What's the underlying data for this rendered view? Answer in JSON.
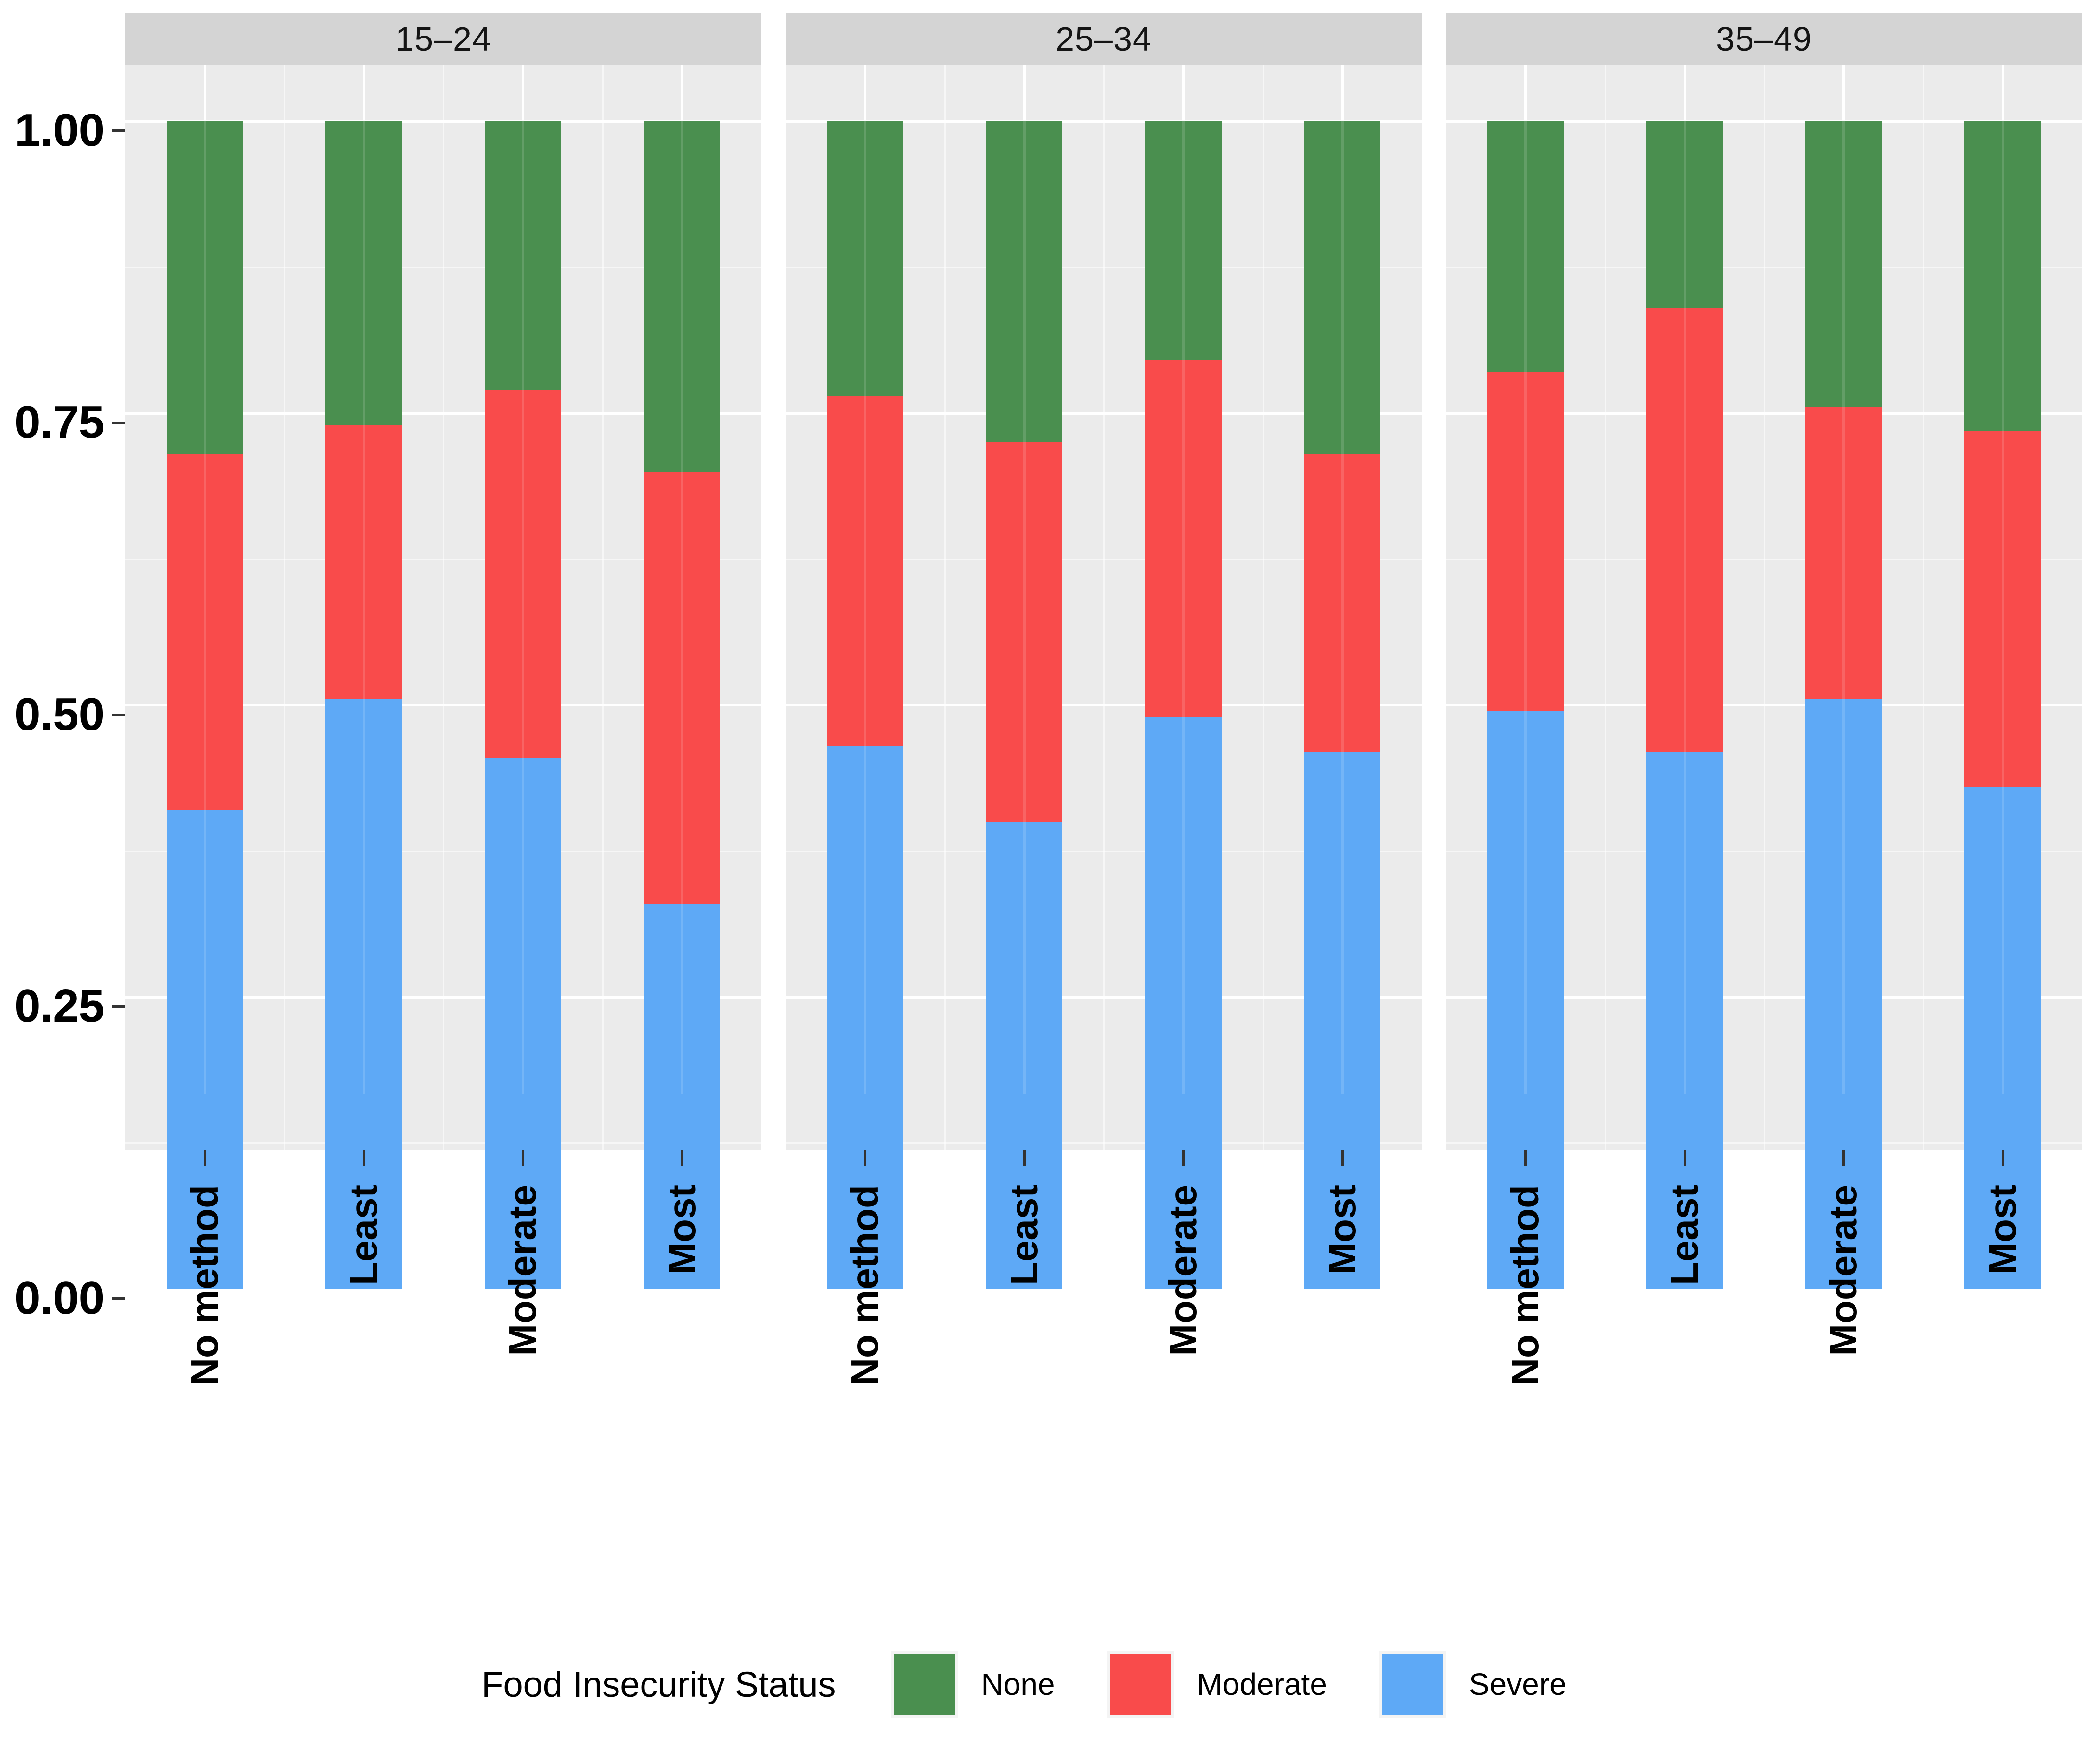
{
  "chart_data": {
    "type": "bar",
    "stacked": true,
    "position": "fill",
    "grid": true,
    "legend_position": "bottom",
    "ylim": [
      0,
      1
    ],
    "y_tick_labels": [
      "1.00",
      "0.75",
      "0.50",
      "0.25",
      "0.00"
    ],
    "y_tick_values": [
      1,
      0.75,
      0.5,
      0.25,
      0
    ],
    "y_minor_values": [
      0.875,
      0.625,
      0.375,
      0.125
    ],
    "categories": [
      "No method",
      "Least",
      "Moderate",
      "Most"
    ],
    "stack_order_bottom_to_top": [
      "Severe",
      "Moderate",
      "None"
    ],
    "facet_labels": [
      "15–24",
      "25–34",
      "35–49"
    ],
    "facets": [
      {
        "label": "15–24",
        "values": {
          "Severe": [
            0.41,
            0.505,
            0.455,
            0.33
          ],
          "Moderate": [
            0.305,
            0.235,
            0.315,
            0.37
          ],
          "None": [
            0.285,
            0.26,
            0.23,
            0.3
          ]
        }
      },
      {
        "label": "25–34",
        "values": {
          "Severe": [
            0.465,
            0.4,
            0.49,
            0.46
          ],
          "Moderate": [
            0.3,
            0.325,
            0.305,
            0.255
          ],
          "None": [
            0.235,
            0.275,
            0.205,
            0.285
          ]
        }
      },
      {
        "label": "35–49",
        "values": {
          "Severe": [
            0.495,
            0.46,
            0.505,
            0.43
          ],
          "Moderate": [
            0.29,
            0.38,
            0.25,
            0.305
          ],
          "None": [
            0.215,
            0.16,
            0.245,
            0.265
          ]
        }
      }
    ],
    "colors": {
      "None": "#4A8F4F",
      "Moderate": "#F94B4B",
      "Severe": "#5EA9F6"
    }
  },
  "legend": {
    "title": "Food Insecurity Status",
    "entries": [
      {
        "label": "None",
        "color": "#4A8F4F"
      },
      {
        "label": "Moderate",
        "color": "#F94B4B"
      },
      {
        "label": "Severe",
        "color": "#5EA9F6"
      }
    ]
  },
  "styles": {
    "panel_background": "#EBEBEB",
    "strip_background": "#D4D4D4",
    "grid_color": "#FFFFFF",
    "text_color": "#000000"
  }
}
